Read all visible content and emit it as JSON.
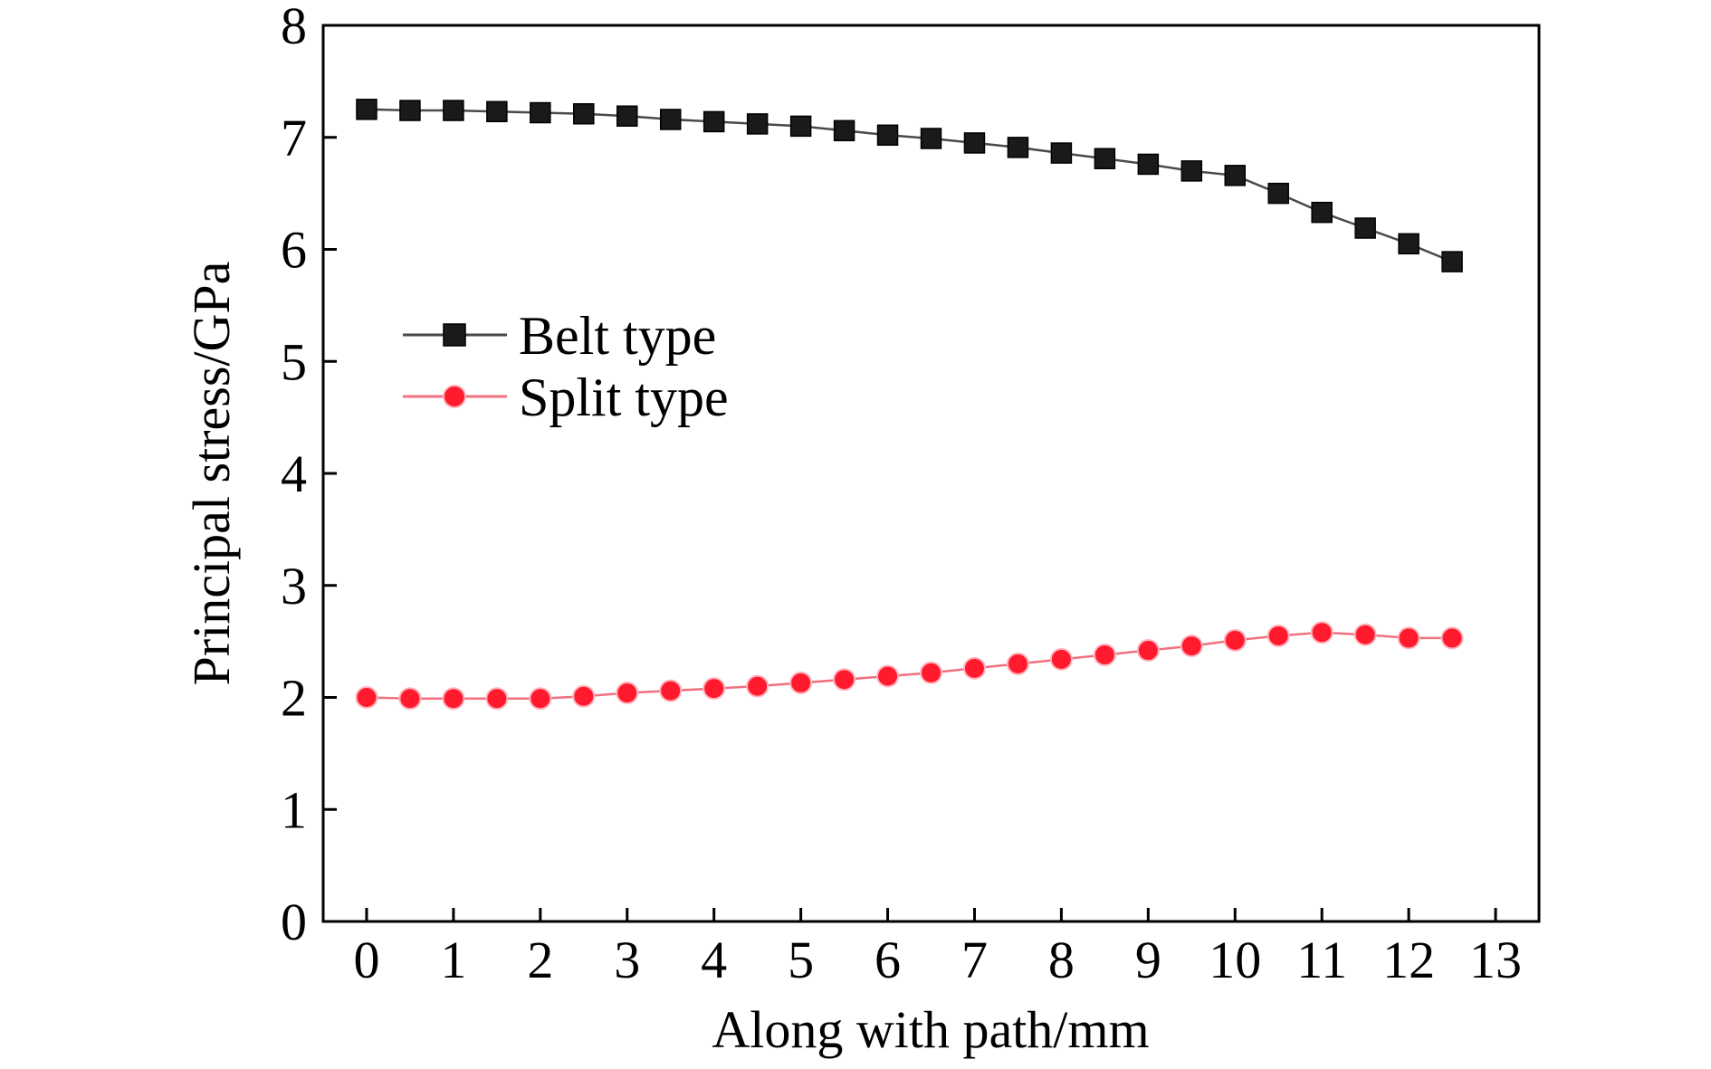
{
  "chart_data": {
    "type": "line",
    "title": "",
    "xlabel": "Along with path/mm",
    "ylabel": "Principal stress/GPa",
    "xlim": [
      -0.5,
      13.5
    ],
    "ylim": [
      0,
      8
    ],
    "xticks": [
      0,
      1,
      2,
      3,
      4,
      5,
      6,
      7,
      8,
      9,
      10,
      11,
      12,
      13
    ],
    "yticks": [
      0,
      1,
      2,
      3,
      4,
      5,
      6,
      7,
      8
    ],
    "grid": false,
    "legend_position": "center-left",
    "x": [
      0,
      0.5,
      1,
      1.5,
      2,
      2.5,
      3,
      3.5,
      4,
      4.5,
      5,
      5.5,
      6,
      6.5,
      7,
      7.5,
      8,
      8.5,
      9,
      9.5,
      10,
      10.5,
      11,
      11.5,
      12,
      12.5
    ],
    "series": [
      {
        "name": "Belt type",
        "color": "#1a1a1a",
        "line_color": "#4a4a4a",
        "marker": "square",
        "values": [
          7.25,
          7.24,
          7.24,
          7.23,
          7.22,
          7.21,
          7.19,
          7.16,
          7.14,
          7.12,
          7.1,
          7.06,
          7.02,
          6.99,
          6.95,
          6.91,
          6.86,
          6.81,
          6.76,
          6.7,
          6.66,
          6.5,
          6.33,
          6.19,
          6.05,
          5.89
        ]
      },
      {
        "name": "Split type",
        "color": "#ff1a2e",
        "line_color": "#f07080",
        "marker": "circle",
        "values": [
          2.0,
          1.99,
          1.99,
          1.99,
          1.99,
          2.01,
          2.04,
          2.06,
          2.08,
          2.1,
          2.13,
          2.16,
          2.19,
          2.22,
          2.26,
          2.3,
          2.34,
          2.38,
          2.42,
          2.46,
          2.51,
          2.55,
          2.58,
          2.56,
          2.53,
          2.53
        ]
      }
    ]
  }
}
